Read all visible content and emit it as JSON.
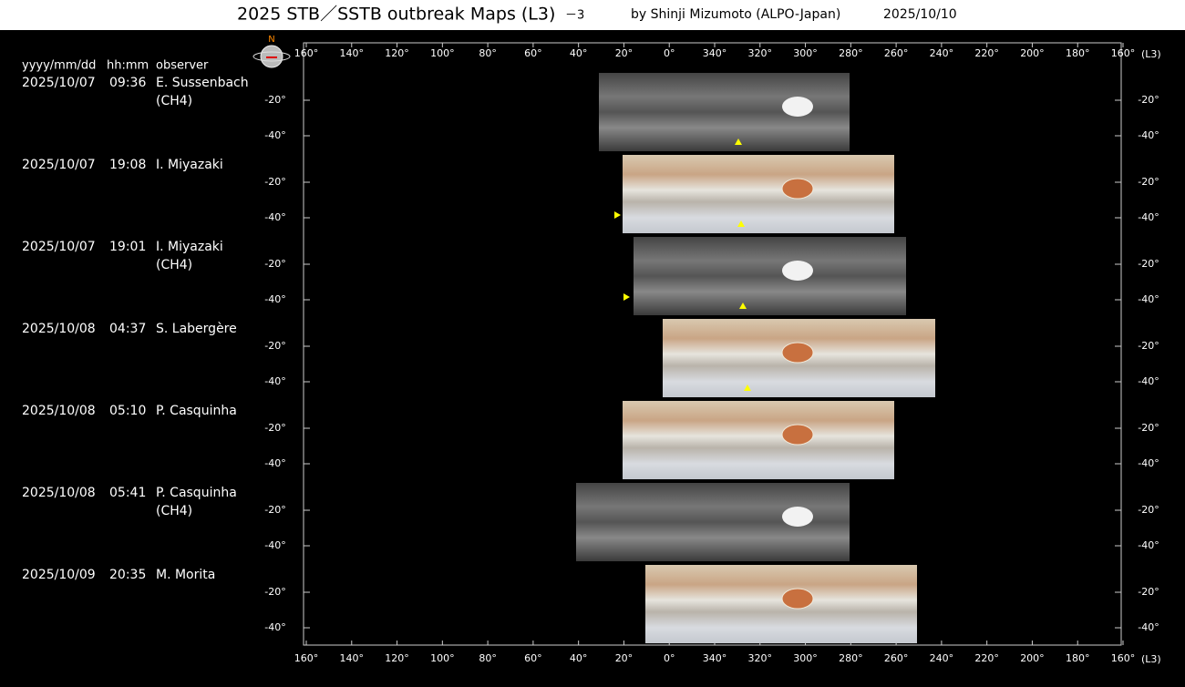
{
  "header": {
    "title": "2025 STB／SSTB outbreak Maps (L3)",
    "part": "－3",
    "author": "by Shinji Mizumoto (ALPO-Japan)",
    "date": "2025/10/10"
  },
  "columns": [
    "yyyy/mm/dd",
    "hh:mm",
    "observer"
  ],
  "compass": "N",
  "longitude_ticks": [
    "160°",
    "140°",
    "120°",
    "100°",
    "80°",
    "60°",
    "40°",
    "20°",
    "0°",
    "340°",
    "320°",
    "300°",
    "280°",
    "260°",
    "240°",
    "220°",
    "200°",
    "180°",
    "160°"
  ],
  "longitude_unit": "(L3)",
  "latitude_ticks": [
    "-20°",
    "-40°"
  ],
  "rows": [
    {
      "date": "2025/10/07",
      "time": "09:36",
      "observer": "E. Sussenbach",
      "filter": "(CH4)"
    },
    {
      "date": "2025/10/07",
      "time": "19:08",
      "observer": "I. Miyazaki"
    },
    {
      "date": "2025/10/07",
      "time": "19:01",
      "observer": "I. Miyazaki",
      "filter": "(CH4)"
    },
    {
      "date": "2025/10/08",
      "time": "04:37",
      "observer": "S. Labergère"
    },
    {
      "date": "2025/10/08",
      "time": "05:10",
      "observer": "P. Casquinha"
    },
    {
      "date": "2025/10/08",
      "time": "05:41",
      "observer": "P. Casquinha",
      "filter": "(CH4)"
    },
    {
      "date": "2025/10/09",
      "time": "20:35",
      "observer": "M. Morita"
    }
  ]
}
